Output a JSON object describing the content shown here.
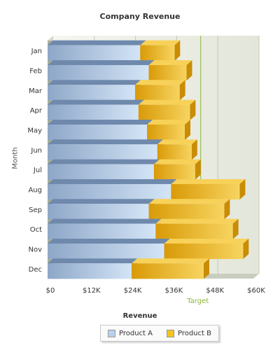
{
  "chart_data": {
    "type": "bar",
    "orientation": "horizontal",
    "stacked": true,
    "title": "Company Revenue",
    "xlabel": "Revenue",
    "ylabel": "Month",
    "categories": [
      "Jan",
      "Feb",
      "Mar",
      "Apr",
      "May",
      "Jun",
      "Jul",
      "Aug",
      "Sep",
      "Oct",
      "Nov",
      "Dec"
    ],
    "series": [
      {
        "name": "Product A",
        "color": "#b8d1ec",
        "values": [
          27000,
          29500,
          25500,
          26500,
          29000,
          32000,
          31000,
          36000,
          29500,
          31500,
          34000,
          24500
        ]
      },
      {
        "name": "Product B",
        "color": "#f3c41f",
        "values": [
          10000,
          11000,
          13000,
          15000,
          11000,
          10000,
          12000,
          20000,
          22000,
          22500,
          23000,
          21000
        ]
      }
    ],
    "xlim": [
      0,
      60000
    ],
    "xticks": [
      "$0",
      "$12K",
      "$24K",
      "$36K",
      "$48K",
      "$60K"
    ],
    "trendline": {
      "label": "Target",
      "value": 43000,
      "color": "#8db53a"
    },
    "legend_position": "bottom"
  }
}
